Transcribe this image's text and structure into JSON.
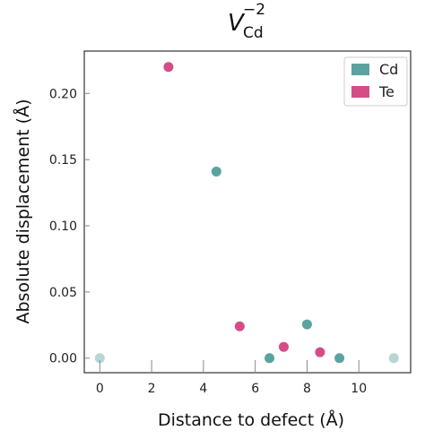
{
  "chart_data": {
    "type": "scatter",
    "title": {
      "main": "V",
      "subscript": "Cd",
      "superscript": "−2"
    },
    "xlabel": "Distance to defect (Å)",
    "ylabel": "Absolute displacement (Å)",
    "xlim": [
      -0.6,
      12.0
    ],
    "ylim": [
      -0.011,
      0.232
    ],
    "x_ticks": [
      0,
      2,
      4,
      6,
      8,
      10
    ],
    "x_tick_labels": [
      "0",
      "2",
      "4",
      "6",
      "8",
      "10"
    ],
    "y_ticks": [
      0.0,
      0.05,
      0.1,
      0.15,
      0.2
    ],
    "y_tick_labels": [
      "0.00",
      "0.05",
      "0.10",
      "0.15",
      "0.20"
    ],
    "grid": false,
    "legend_position": "top-right",
    "series": [
      {
        "name": "Cd",
        "color": "#5ba3a0",
        "points": [
          {
            "x": 0.0,
            "y": 0.0,
            "faded": true
          },
          {
            "x": 4.5,
            "y": 0.141,
            "faded": false
          },
          {
            "x": 6.55,
            "y": 0.0,
            "faded": false
          },
          {
            "x": 8.0,
            "y": 0.0255,
            "faded": false
          },
          {
            "x": 9.25,
            "y": 0.0,
            "faded": false
          },
          {
            "x": 11.35,
            "y": 0.0,
            "faded": true
          }
        ]
      },
      {
        "name": "Te",
        "color": "#d44d86",
        "points": [
          {
            "x": 2.65,
            "y": 0.22,
            "faded": false
          },
          {
            "x": 5.4,
            "y": 0.024,
            "faded": false
          },
          {
            "x": 7.1,
            "y": 0.0085,
            "faded": false
          },
          {
            "x": 8.5,
            "y": 0.0045,
            "faded": false
          }
        ]
      }
    ]
  }
}
